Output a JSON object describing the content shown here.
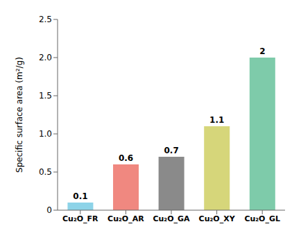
{
  "chart_data": {
    "type": "bar",
    "categories": [
      "Cu₂O_FR",
      "Cu₂O_AR",
      "Cu₂O_GA",
      "Cu₂O_XY",
      "Cu₂O_GL"
    ],
    "values": [
      0.1,
      0.6,
      0.7,
      1.1,
      2.0
    ],
    "colors": [
      "#8dd3e8",
      "#f08880",
      "#8a8a8a",
      "#d6d67a",
      "#7ecbaa"
    ],
    "ylabel": "Specific surface area (m²/g)",
    "ylim": [
      0,
      2.5
    ],
    "yticks": [
      0,
      0.5,
      {
        "value": 1.0,
        "label": "1.0"
      },
      1.5,
      {
        "value": 2.0,
        "label": "2.0"
      },
      2.5
    ],
    "data_labels": true,
    "grid": false
  }
}
